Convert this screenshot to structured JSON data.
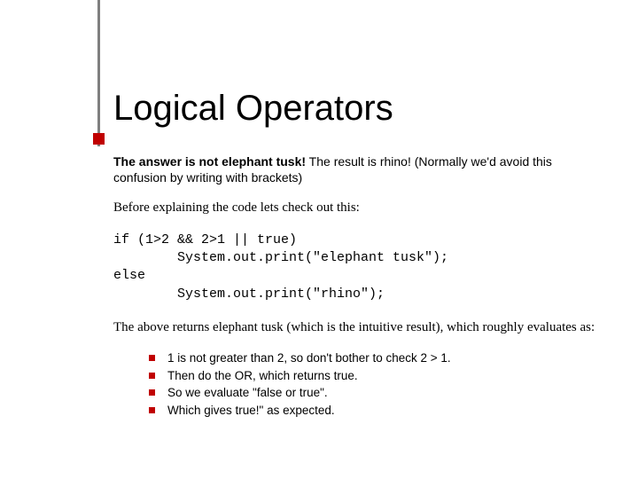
{
  "title": "Logical Operators",
  "intro_bold": "The answer is not elephant tusk!",
  "intro_rest": " The result is rhino! (Normally we'd avoid this confusion by writing with brackets)",
  "before_line": "Before explaining the code lets check out this:",
  "code": "if (1>2 && 2>1 || true)\n        System.out.print(\"elephant tusk\");\nelse\n        System.out.print(\"rhino\");",
  "after_line": "The above returns elephant tusk (which is the intuitive result), which roughly evaluates as:",
  "bullets": [
    "1 is not greater than 2, so don't bother to check 2 > 1.",
    "Then do the OR, which returns true.",
    "So we evaluate \"false or true\".",
    "Which gives true!\" as expected."
  ],
  "colors": {
    "accent": "#c00000",
    "line": "#7f7f7f",
    "text": "#000000",
    "background": "#ffffff"
  }
}
